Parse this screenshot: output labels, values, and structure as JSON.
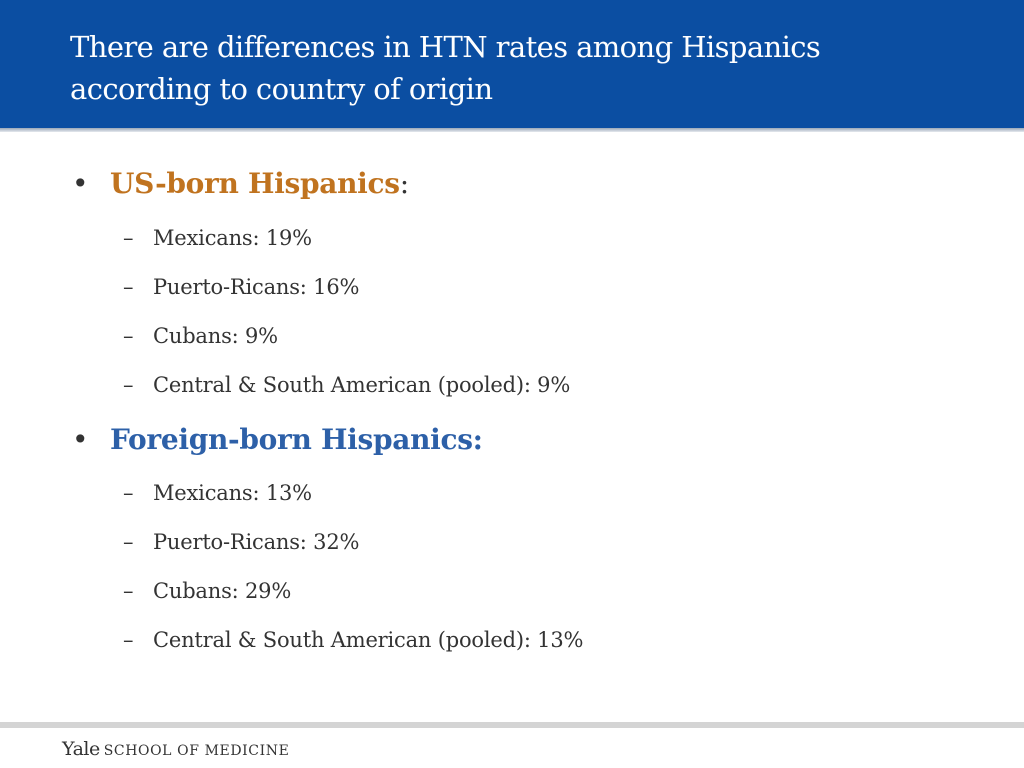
{
  "slide": {
    "title_line1": "There are differences in HTN rates among Hispanics",
    "title_line2": "according to country of origin",
    "colors": {
      "title_bar": "#0b4ea2",
      "us_heading": "#c0731f",
      "foreign_heading": "#2d60a8",
      "body_text": "#333333"
    }
  },
  "sections": [
    {
      "bullet": "•",
      "heading": "US-born Hispanics",
      "heading_suffix": ":",
      "items": [
        "Mexicans: 19%",
        "Puerto-Ricans: 16%",
        "Cubans: 9%",
        "Central & South American (pooled): 9%"
      ]
    },
    {
      "bullet": "•",
      "heading": "Foreign-born Hispanics:",
      "items": [
        "Mexicans: 13%",
        "Puerto-Ricans: 32%",
        "Cubans: 29%",
        "Central & South American (pooled): 13%"
      ]
    }
  ],
  "sub_dash": "–",
  "footer": {
    "yale": "Yale",
    "school": "SCHOOL OF MEDICINE"
  }
}
